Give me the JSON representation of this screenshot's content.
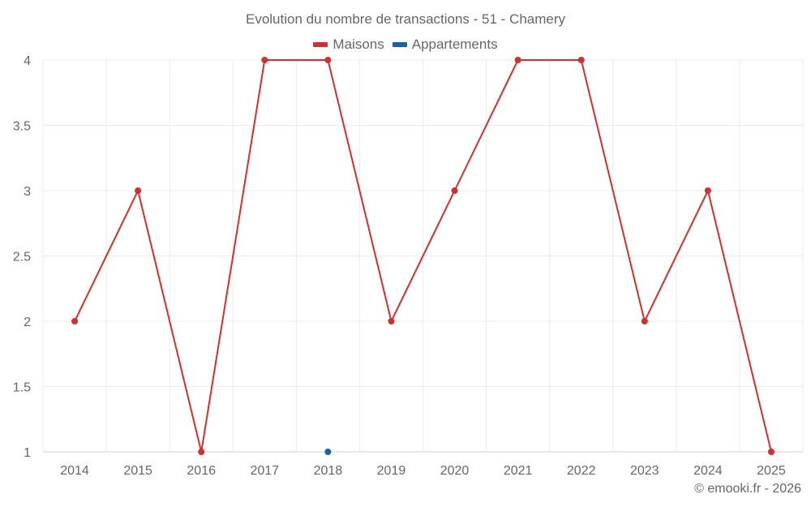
{
  "chart_data": {
    "type": "line",
    "title": "Evolution du nombre de transactions - 51 - Chamery",
    "xlabel": "",
    "ylabel": "",
    "categories": [
      "2014",
      "2015",
      "2016",
      "2017",
      "2018",
      "2019",
      "2020",
      "2021",
      "2022",
      "2023",
      "2024",
      "2025"
    ],
    "ylim": [
      1,
      4
    ],
    "yticks": [
      "1",
      "1.5",
      "2",
      "2.5",
      "3",
      "3.5",
      "4"
    ],
    "grid": true,
    "legend_position": "top-center",
    "series": [
      {
        "name": "Maisons",
        "color": "#d32f2f",
        "values": [
          2,
          3,
          1,
          4,
          4,
          2,
          3,
          4,
          4,
          2,
          3,
          1
        ]
      },
      {
        "name": "Appartements",
        "color": "#1565a0",
        "values": [
          null,
          null,
          null,
          null,
          1,
          null,
          null,
          null,
          null,
          null,
          null,
          null
        ]
      }
    ]
  },
  "credit": "© emooki.fr - 2026"
}
